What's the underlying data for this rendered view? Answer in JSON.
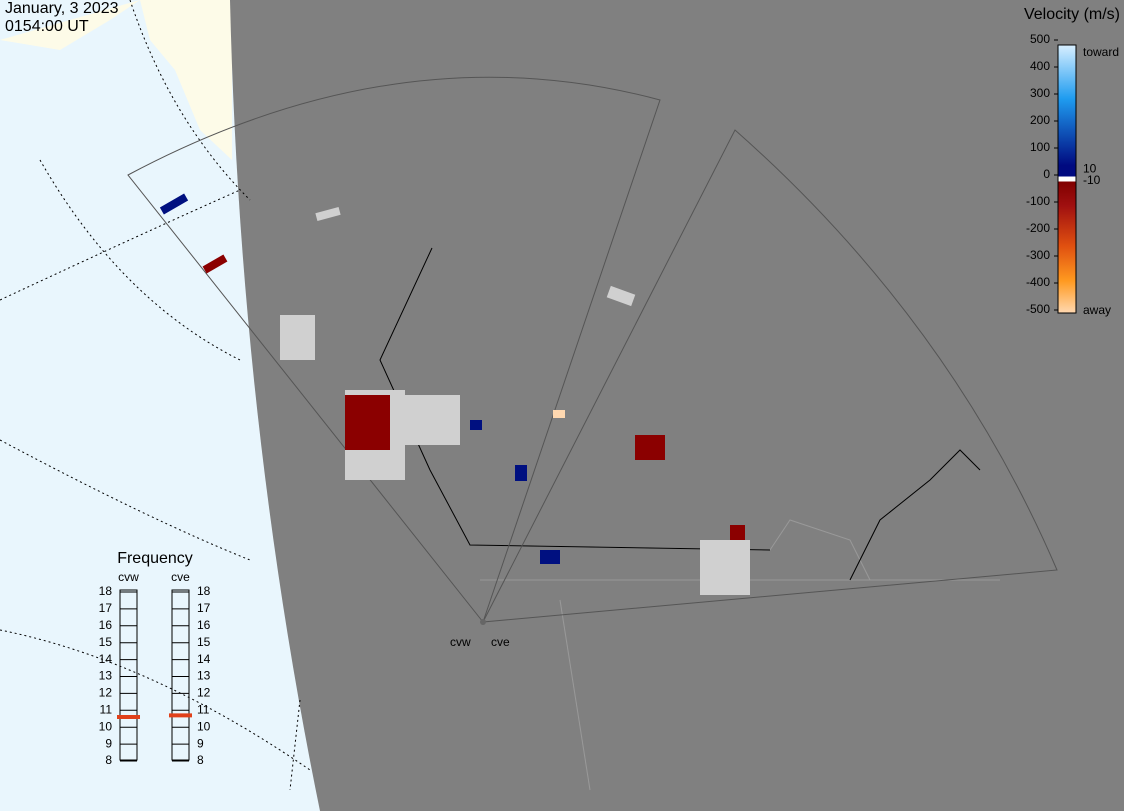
{
  "header": {
    "date": "January, 3 2023",
    "time": "0154:00 UT"
  },
  "velocity_scale": {
    "title": "Velocity (m/s)",
    "ticks": [
      500,
      400,
      300,
      200,
      100,
      0,
      -100,
      -200,
      -300,
      -400,
      -500
    ],
    "inner_ticks": [
      10,
      -10
    ],
    "toward": "toward",
    "away": "away"
  },
  "frequency": {
    "title": "Frequency",
    "ticks": [
      8,
      9,
      10,
      11,
      12,
      13,
      14,
      15,
      16,
      17,
      18
    ],
    "radars": [
      {
        "name": "cvw",
        "value": 10.6
      },
      {
        "name": "cve",
        "value": 10.7
      }
    ]
  },
  "sites": [
    "cvw",
    "cve"
  ]
}
